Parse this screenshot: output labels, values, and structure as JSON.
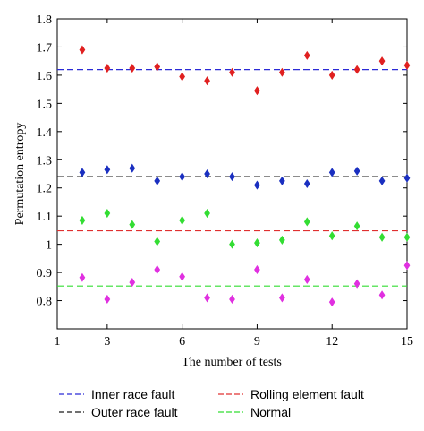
{
  "chart_data": {
    "type": "scatter",
    "xlabel": "The number of tests",
    "ylabel": "Permutation entropy",
    "xlim": [
      1,
      15
    ],
    "ylim": [
      0.7,
      1.8
    ],
    "xticks": [
      "1",
      "3",
      "6",
      "9",
      "12",
      "15"
    ],
    "yticks": [
      "0.8",
      "0.9",
      "1",
      "1.1",
      "1.2",
      "1.3",
      "1.4",
      "1.5",
      "1.6",
      "1.7",
      "1.8"
    ],
    "grid": false,
    "legend_position": "below",
    "series": [
      {
        "name": "Inner race fault",
        "color": "#e02020",
        "line_color": "#2b2bd6",
        "mean": 1.62,
        "x": [
          2,
          3,
          4,
          5,
          6,
          7,
          8,
          9,
          10,
          11,
          12,
          13,
          14,
          15
        ],
        "y": [
          1.69,
          1.625,
          1.625,
          1.63,
          1.595,
          1.58,
          1.61,
          1.545,
          1.61,
          1.67,
          1.6,
          1.62,
          1.65,
          1.635
        ]
      },
      {
        "name": "Outer race fault",
        "color": "#1a2fc0",
        "line_color": "#1a1a1a",
        "mean": 1.24,
        "x": [
          2,
          3,
          4,
          5,
          6,
          7,
          8,
          9,
          10,
          11,
          12,
          13,
          14,
          15
        ],
        "y": [
          1.255,
          1.265,
          1.27,
          1.225,
          1.24,
          1.25,
          1.24,
          1.21,
          1.225,
          1.215,
          1.255,
          1.26,
          1.225,
          1.235
        ]
      },
      {
        "name": "Rolling element fault",
        "color": "#33dd33",
        "line_color": "#e03030",
        "mean": 1.048,
        "x": [
          2,
          3,
          4,
          5,
          6,
          7,
          8,
          9,
          10,
          11,
          12,
          13,
          14,
          15
        ],
        "y": [
          1.085,
          1.11,
          1.07,
          1.01,
          1.085,
          1.11,
          1.0,
          1.005,
          1.015,
          1.08,
          1.03,
          1.065,
          1.025,
          1.025
        ]
      },
      {
        "name": "Normal",
        "color": "#e030e0",
        "line_color": "#33dd33",
        "mean": 0.852,
        "x": [
          2,
          3,
          4,
          5,
          6,
          7,
          8,
          9,
          10,
          11,
          12,
          13,
          14,
          15
        ],
        "y": [
          0.882,
          0.805,
          0.865,
          0.91,
          0.885,
          0.81,
          0.805,
          0.91,
          0.81,
          0.875,
          0.795,
          0.86,
          0.82,
          0.925
        ]
      }
    ],
    "legend": [
      {
        "label": "Inner race fault",
        "color": "#2b2bd6"
      },
      {
        "label": "Rolling element fault",
        "color": "#e03030"
      },
      {
        "label": "Outer race fault",
        "color": "#1a1a1a"
      },
      {
        "label": "Normal",
        "color": "#33dd33"
      }
    ]
  }
}
